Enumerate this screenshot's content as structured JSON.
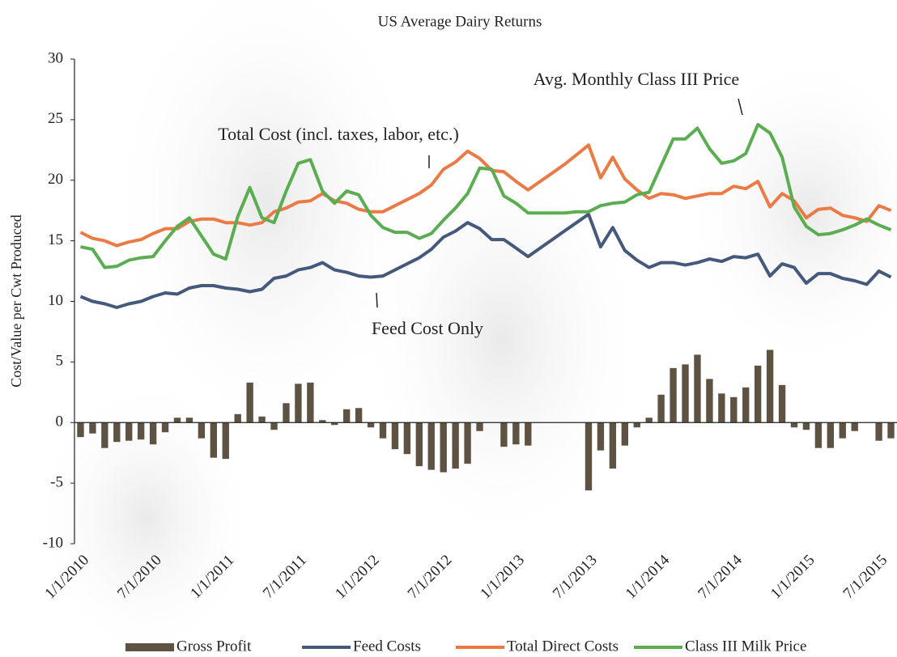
{
  "chart_data": {
    "type": "combo",
    "title": "US Average Dairy Returns",
    "y_label": "Cost/Value per Cwt Produced",
    "annotations": [
      "Total Cost (incl. taxes, labor, etc.)",
      "Avg. Monthly Class III Price",
      "Feed Cost Only"
    ],
    "categories": [
      "1/1/2010",
      null,
      null,
      null,
      null,
      null,
      "7/1/2010",
      null,
      null,
      null,
      null,
      null,
      "1/1/2011",
      null,
      null,
      null,
      null,
      null,
      "7/1/2011",
      null,
      null,
      null,
      null,
      null,
      "1/1/2012",
      null,
      null,
      null,
      null,
      null,
      "7/1/2012",
      null,
      null,
      null,
      null,
      null,
      "1/1/2013",
      null,
      null,
      null,
      null,
      null,
      "7/1/2013",
      null,
      null,
      null,
      null,
      null,
      "1/1/2014",
      null,
      null,
      null,
      null,
      null,
      "7/1/2014",
      null,
      null,
      null,
      null,
      null,
      "1/1/2015",
      null,
      null,
      null,
      null,
      null,
      "7/1/2015",
      null
    ],
    "series": [
      {
        "name": "Gross Profit",
        "type": "bar",
        "color": "#5e5343",
        "values": [
          -1.2,
          -0.9,
          -2.1,
          -1.6,
          -1.5,
          -1.4,
          -1.8,
          -0.8,
          0.4,
          0.4,
          -1.3,
          -2.9,
          -3.0,
          0.7,
          3.3,
          0.5,
          -0.6,
          1.6,
          3.2,
          3.3,
          0.2,
          -0.2,
          1.1,
          1.2,
          -0.4,
          -1.3,
          -2.2,
          -2.6,
          -3.6,
          -3.9,
          -4.1,
          -3.8,
          -3.4,
          -0.7,
          null,
          -2.0,
          -1.8,
          -1.9,
          null,
          null,
          null,
          null,
          -5.6,
          -2.3,
          -3.8,
          -1.9,
          -0.4,
          0.4,
          2.3,
          4.5,
          4.8,
          5.6,
          3.6,
          2.4,
          2.1,
          2.9,
          4.7,
          6.0,
          3.1,
          -0.4,
          -0.6,
          -2.1,
          -2.1,
          -1.3,
          -0.7,
          null,
          -1.5,
          -1.3
        ]
      },
      {
        "name": "Feed Costs",
        "type": "line",
        "color": "#44597b",
        "values": [
          10.4,
          10.0,
          9.8,
          9.5,
          9.8,
          10.0,
          10.4,
          10.7,
          10.6,
          11.1,
          11.3,
          11.3,
          11.1,
          11.0,
          10.8,
          11.0,
          11.9,
          12.1,
          12.6,
          12.8,
          13.2,
          12.6,
          12.4,
          12.1,
          12.0,
          12.1,
          12.6,
          13.1,
          13.6,
          14.3,
          15.3,
          15.8,
          16.5,
          16.0,
          15.1,
          15.1,
          14.4,
          13.7,
          14.4,
          15.1,
          15.8,
          16.5,
          17.2,
          14.5,
          16.1,
          14.2,
          13.4,
          12.8,
          13.2,
          13.2,
          13.0,
          13.2,
          13.5,
          13.3,
          13.7,
          13.6,
          13.9,
          12.1,
          13.1,
          12.8,
          11.5,
          12.3,
          12.3,
          11.9,
          11.7,
          11.4,
          12.5,
          12.0
        ]
      },
      {
        "name": "Total Direct Costs",
        "type": "line",
        "color": "#ec7a45",
        "values": [
          15.7,
          15.2,
          15.0,
          14.6,
          14.9,
          15.1,
          15.6,
          16.0,
          16.0,
          16.6,
          16.8,
          16.8,
          16.5,
          16.5,
          16.3,
          16.5,
          17.4,
          17.7,
          18.2,
          18.3,
          18.9,
          18.3,
          18.1,
          17.6,
          17.4,
          17.4,
          17.9,
          18.4,
          18.9,
          19.6,
          20.9,
          21.5,
          22.4,
          21.8,
          20.8,
          20.7,
          19.9,
          19.2,
          19.9,
          20.6,
          21.3,
          22.1,
          22.9,
          20.2,
          21.9,
          20.1,
          19.2,
          18.5,
          18.9,
          18.8,
          18.5,
          18.7,
          18.9,
          18.9,
          19.5,
          19.3,
          19.9,
          17.8,
          18.9,
          18.3,
          16.9,
          17.6,
          17.7,
          17.1,
          16.9,
          16.6,
          17.9,
          17.5
        ]
      },
      {
        "name": "Class III Milk Price",
        "type": "line",
        "color": "#5aad50",
        "values": [
          14.5,
          14.3,
          12.8,
          12.9,
          13.4,
          13.6,
          13.7,
          15.0,
          16.2,
          16.9,
          15.4,
          13.9,
          13.5,
          17.0,
          19.4,
          16.9,
          16.5,
          19.1,
          21.4,
          21.7,
          19.1,
          18.1,
          19.1,
          18.8,
          17.1,
          16.1,
          15.7,
          15.7,
          15.2,
          15.6,
          16.7,
          17.7,
          18.9,
          21.0,
          20.9,
          18.7,
          18.1,
          17.3,
          17.3,
          17.3,
          17.3,
          17.4,
          17.4,
          17.9,
          18.1,
          18.2,
          18.8,
          19.0,
          21.2,
          23.4,
          23.4,
          24.3,
          22.6,
          21.4,
          21.6,
          22.2,
          24.6,
          23.9,
          21.9,
          17.8,
          16.2,
          15.5,
          15.6,
          15.9,
          16.3,
          16.8,
          16.3,
          15.9
        ]
      }
    ],
    "ylim": [
      -10,
      30
    ],
    "yticks": [
      -10,
      -5,
      0,
      5,
      10,
      15,
      20,
      25,
      30
    ]
  }
}
